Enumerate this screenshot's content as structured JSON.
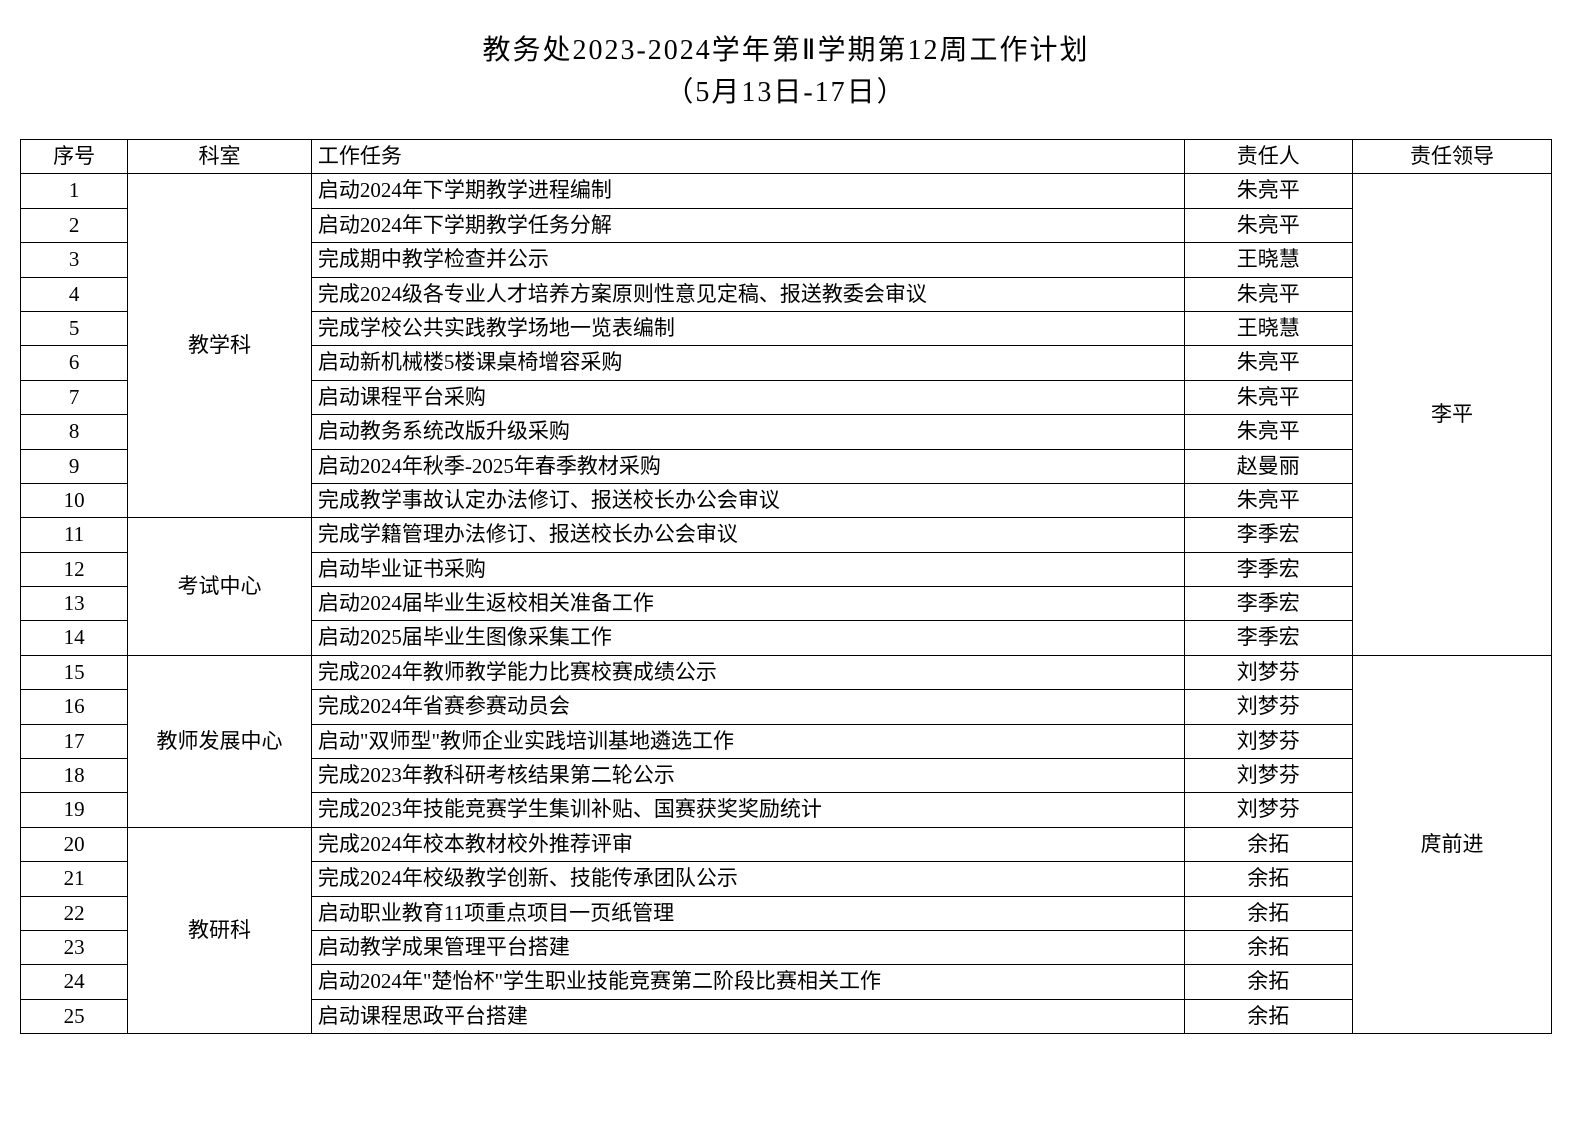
{
  "title": {
    "line1": "教务处2023-2024学年第Ⅱ学期第12周工作计划",
    "line2": "（5月13日-17日）"
  },
  "headers": {
    "seq": "序号",
    "dept": "科室",
    "task": "工作任务",
    "person": "责任人",
    "leader": "责任领导"
  },
  "departments": [
    {
      "name": "教学科",
      "leader": "李平",
      "leaderRowspan": 14,
      "tasks": [
        {
          "seq": "1",
          "task": "启动2024年下学期教学进程编制",
          "person": "朱亮平"
        },
        {
          "seq": "2",
          "task": "启动2024年下学期教学任务分解",
          "person": "朱亮平"
        },
        {
          "seq": "3",
          "task": "完成期中教学检查并公示",
          "person": "王晓慧"
        },
        {
          "seq": "4",
          "task": "完成2024级各专业人才培养方案原则性意见定稿、报送教委会审议",
          "person": "朱亮平"
        },
        {
          "seq": "5",
          "task": "完成学校公共实践教学场地一览表编制",
          "person": "王晓慧"
        },
        {
          "seq": "6",
          "task": "启动新机械楼5楼课桌椅增容采购",
          "person": "朱亮平"
        },
        {
          "seq": "7",
          "task": "启动课程平台采购",
          "person": "朱亮平"
        },
        {
          "seq": "8",
          "task": "启动教务系统改版升级采购",
          "person": "朱亮平"
        },
        {
          "seq": "9",
          "task": "启动2024年秋季-2025年春季教材采购",
          "person": "赵曼丽"
        },
        {
          "seq": "10",
          "task": "完成教学事故认定办法修订、报送校长办公会审议",
          "person": "朱亮平"
        }
      ]
    },
    {
      "name": "考试中心",
      "tasks": [
        {
          "seq": "11",
          "task": "完成学籍管理办法修订、报送校长办公会审议",
          "person": "李季宏"
        },
        {
          "seq": "12",
          "task": "启动毕业证书采购",
          "person": "李季宏"
        },
        {
          "seq": "13",
          "task": "启动2024届毕业生返校相关准备工作",
          "person": "李季宏"
        },
        {
          "seq": "14",
          "task": "启动2025届毕业生图像采集工作",
          "person": "李季宏"
        }
      ]
    },
    {
      "name": "教师发展中心",
      "leader": "庹前进",
      "leaderRowspan": 11,
      "tasks": [
        {
          "seq": "15",
          "task": "完成2024年教师教学能力比赛校赛成绩公示",
          "person": "刘梦芬"
        },
        {
          "seq": "16",
          "task": "完成2024年省赛参赛动员会",
          "person": "刘梦芬"
        },
        {
          "seq": "17",
          "task": "启动\"双师型\"教师企业实践培训基地遴选工作",
          "person": "刘梦芬"
        },
        {
          "seq": "18",
          "task": "完成2023年教科研考核结果第二轮公示",
          "person": "刘梦芬"
        },
        {
          "seq": "19",
          "task": "完成2023年技能竞赛学生集训补贴、国赛获奖奖励统计",
          "person": "刘梦芬"
        }
      ]
    },
    {
      "name": "教研科",
      "tasks": [
        {
          "seq": "20",
          "task": "完成2024年校本教材校外推荐评审",
          "person": "余拓"
        },
        {
          "seq": "21",
          "task": "完成2024年校级教学创新、技能传承团队公示",
          "person": "余拓"
        },
        {
          "seq": "22",
          "task": "启动职业教育11项重点项目一页纸管理",
          "person": "余拓"
        },
        {
          "seq": "23",
          "task": "启动教学成果管理平台搭建",
          "person": "余拓"
        },
        {
          "seq": "24",
          "task": "启动2024年\"楚怡杯\"学生职业技能竞赛第二阶段比赛相关工作",
          "person": "余拓"
        },
        {
          "seq": "25",
          "task": "启动课程思政平台搭建",
          "person": "余拓"
        }
      ]
    }
  ]
}
